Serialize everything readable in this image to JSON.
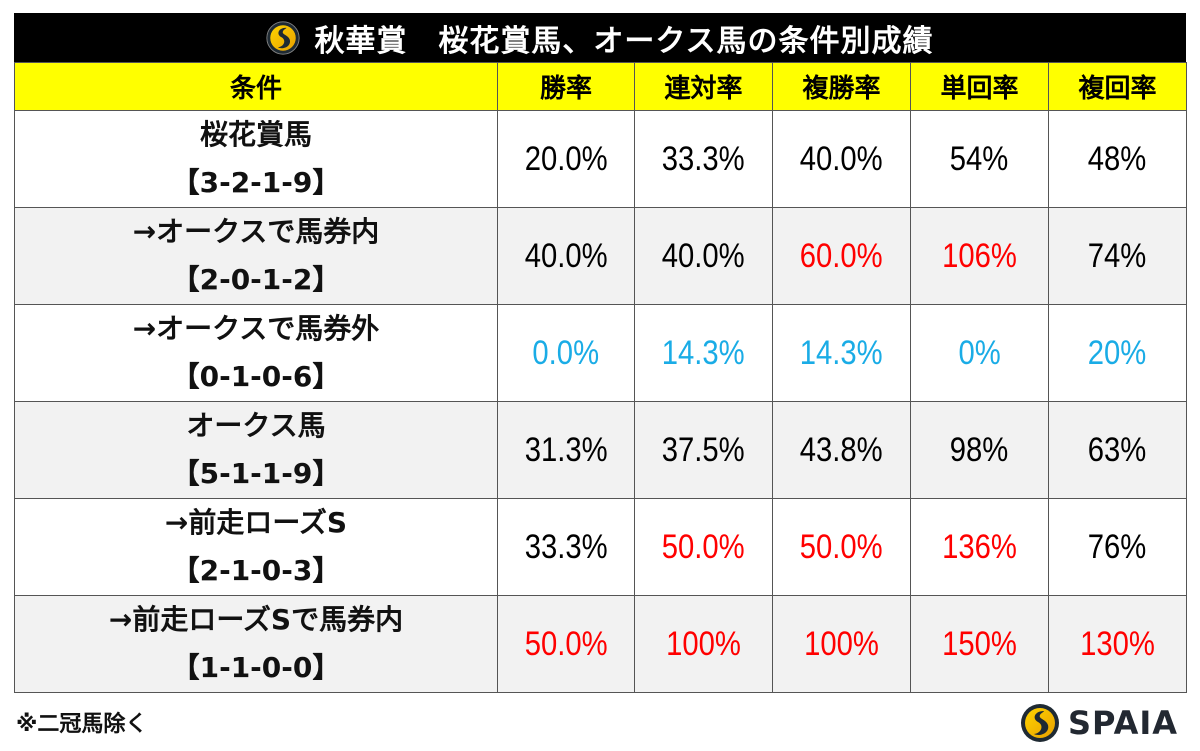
{
  "title": "秋華賞　桜花賞馬、オークス馬の条件別成績",
  "header": {
    "columns": [
      "条件",
      "勝率",
      "連対率",
      "複勝率",
      "単回率",
      "複回率"
    ]
  },
  "colors": {
    "header_bg": "#ffff00",
    "title_bg": "#000000",
    "highlight_red": "#ff0000",
    "highlight_blue": "#1aace6",
    "alt_row_bg": "#f2f2f2"
  },
  "rows": [
    {
      "label": "桜花賞馬",
      "record": "【3-2-1-9】",
      "values": [
        {
          "v": "20.0%",
          "c": "black"
        },
        {
          "v": "33.3%",
          "c": "black"
        },
        {
          "v": "40.0%",
          "c": "black"
        },
        {
          "v": "54%",
          "c": "black"
        },
        {
          "v": "48%",
          "c": "black"
        }
      ]
    },
    {
      "label": "→オークスで馬券内",
      "record": "【2-0-1-2】",
      "values": [
        {
          "v": "40.0%",
          "c": "black"
        },
        {
          "v": "40.0%",
          "c": "black"
        },
        {
          "v": "60.0%",
          "c": "red"
        },
        {
          "v": "106%",
          "c": "red"
        },
        {
          "v": "74%",
          "c": "black"
        }
      ]
    },
    {
      "label": "→オークスで馬券外",
      "record": "【0-1-0-6】",
      "values": [
        {
          "v": "0.0%",
          "c": "blue"
        },
        {
          "v": "14.3%",
          "c": "blue"
        },
        {
          "v": "14.3%",
          "c": "blue"
        },
        {
          "v": "0%",
          "c": "blue"
        },
        {
          "v": "20%",
          "c": "blue"
        }
      ]
    },
    {
      "label": "オークス馬",
      "record": "【5-1-1-9】",
      "values": [
        {
          "v": "31.3%",
          "c": "black"
        },
        {
          "v": "37.5%",
          "c": "black"
        },
        {
          "v": "43.8%",
          "c": "black"
        },
        {
          "v": "98%",
          "c": "black"
        },
        {
          "v": "63%",
          "c": "black"
        }
      ]
    },
    {
      "label": "→前走ローズS",
      "record": "【2-1-0-3】",
      "values": [
        {
          "v": "33.3%",
          "c": "black"
        },
        {
          "v": "50.0%",
          "c": "red"
        },
        {
          "v": "50.0%",
          "c": "red"
        },
        {
          "v": "136%",
          "c": "red"
        },
        {
          "v": "76%",
          "c": "black"
        }
      ]
    },
    {
      "label": "→前走ローズSで馬券内",
      "record": "【1-1-0-0】",
      "values": [
        {
          "v": "50.0%",
          "c": "red"
        },
        {
          "v": "100%",
          "c": "red"
        },
        {
          "v": "100%",
          "c": "red"
        },
        {
          "v": "150%",
          "c": "red"
        },
        {
          "v": "130%",
          "c": "red"
        }
      ]
    }
  ],
  "footnote": "※二冠馬除く",
  "brand": {
    "name": "SPAIA",
    "icon": "spaia-logo-icon"
  }
}
